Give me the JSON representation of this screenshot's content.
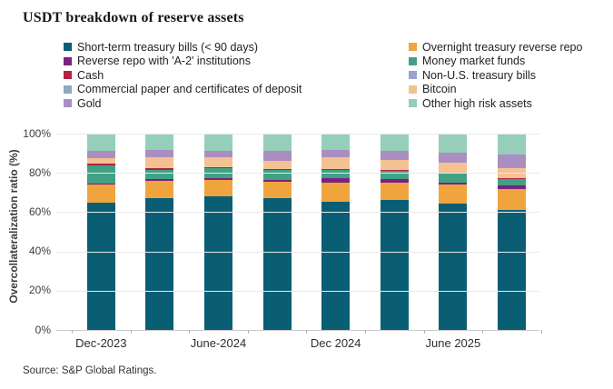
{
  "title": "USDT breakdown of reserve assets",
  "source": "Source: S&P Global Ratings.",
  "y_axis": {
    "label": "Overcollateralization ratio (%)",
    "ticks": [
      "100%",
      "80%",
      "60%",
      "40%",
      "20%",
      "0%"
    ]
  },
  "x_axis": {
    "labels": [
      "Dec-2023",
      "June-2024",
      "Dec 2024",
      "June 2025"
    ],
    "labeled_slots": [
      0,
      2,
      4,
      6
    ]
  },
  "legend": {
    "column_series_indexes": [
      [
        0,
        2,
        4,
        6,
        8
      ],
      [
        1,
        3,
        5,
        7,
        9
      ]
    ]
  },
  "chart_data": {
    "type": "bar",
    "stacked": true,
    "title": "USDT breakdown of reserve assets",
    "ylabel": "Overcollateralization ratio (%)",
    "ylim": [
      0,
      100
    ],
    "grid": true,
    "legend_position": "top",
    "categories": [
      "Dec-2023",
      "",
      "June-2024",
      "",
      "Dec 2024",
      "",
      "June 2025",
      ""
    ],
    "x_tick_labels": [
      "Dec-2023",
      "June-2024",
      "Dec 2024",
      "June 2025"
    ],
    "series": [
      {
        "name": "Short-term treasury bills (< 90 days)",
        "color": "#0a5e73",
        "values": [
          65,
          67,
          68,
          67,
          65.3,
          66,
          64.3,
          61
        ]
      },
      {
        "name": "Overnight treasury reverse repo",
        "color": "#f0a43e",
        "values": [
          9,
          9,
          8.4,
          8.5,
          9.6,
          9.2,
          9.6,
          11
        ]
      },
      {
        "name": "Reverse repo with 'A-2' institutions",
        "color": "#7a2182",
        "values": [
          0.7,
          0.8,
          0.8,
          0.8,
          2.5,
          1.5,
          1.2,
          1.8
        ]
      },
      {
        "name": "Money market funds",
        "color": "#41a184",
        "values": [
          9,
          4.5,
          5.3,
          5,
          4.2,
          4.4,
          4.7,
          3.3
        ]
      },
      {
        "name": "Cash",
        "color": "#b02447",
        "values": [
          1,
          0.9,
          0.3,
          0.5,
          0.2,
          0.4,
          0.4,
          0.4
        ]
      },
      {
        "name": "Non-U.S. treasury bills",
        "color": "#9aa3d2",
        "values": [
          0,
          0,
          0,
          0,
          0,
          0,
          0,
          0
        ]
      },
      {
        "name": "Commercial paper and certificates of deposit",
        "color": "#92a9b9",
        "values": [
          0,
          0,
          0,
          0,
          0,
          0,
          0,
          0
        ]
      },
      {
        "name": "Bitcoin",
        "color": "#f4c193",
        "values": [
          2.8,
          5.7,
          5,
          4.5,
          6,
          5,
          5.1,
          4.8
        ]
      },
      {
        "name": "Gold",
        "color": "#aa8ec0",
        "values": [
          3.6,
          4,
          3.6,
          4.7,
          3.7,
          4.7,
          5.2,
          7
        ]
      },
      {
        "name": "Other high risk assets",
        "color": "#95cfb9",
        "values": [
          8.9,
          8.1,
          8.6,
          9,
          8.5,
          8.8,
          9.5,
          10.7
        ]
      }
    ]
  }
}
